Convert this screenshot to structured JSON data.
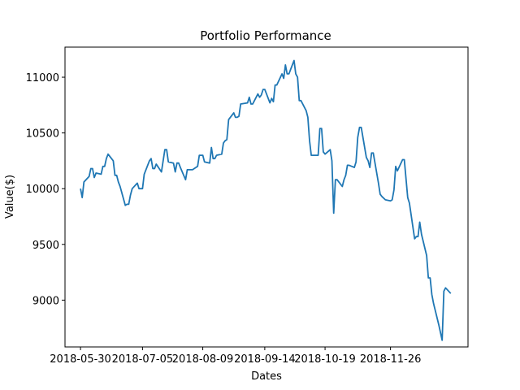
{
  "chart_data": {
    "type": "line",
    "title": "Portfolio Performance",
    "xlabel": "Dates",
    "ylabel": "Value($)",
    "x_ticks": [
      "2018-05-30",
      "2018-07-05",
      "2018-08-09",
      "2018-09-14",
      "2018-10-19",
      "2018-11-26"
    ],
    "y_ticks": [
      9000,
      9500,
      10000,
      10500,
      11000
    ],
    "ylim": [
      8580,
      11270
    ],
    "xlim": [
      "2018-05-21",
      "2019-01-10"
    ],
    "grid": false,
    "colors": {
      "line": "#1f77b4"
    },
    "series": [
      {
        "x": [
          "2018-05-30",
          "2018-05-31",
          "2018-06-01",
          "2018-06-04",
          "2018-06-05",
          "2018-06-06",
          "2018-06-07",
          "2018-06-08",
          "2018-06-11",
          "2018-06-12",
          "2018-06-13",
          "2018-06-14",
          "2018-06-15",
          "2018-06-18",
          "2018-06-19",
          "2018-06-20",
          "2018-06-21",
          "2018-06-22",
          "2018-06-25",
          "2018-06-26",
          "2018-06-27",
          "2018-06-28",
          "2018-06-29",
          "2018-07-02",
          "2018-07-03",
          "2018-07-05",
          "2018-07-06",
          "2018-07-09",
          "2018-07-10",
          "2018-07-11",
          "2018-07-12",
          "2018-07-13",
          "2018-07-16",
          "2018-07-17",
          "2018-07-18",
          "2018-07-19",
          "2018-07-20",
          "2018-07-23",
          "2018-07-24",
          "2018-07-25",
          "2018-07-26",
          "2018-07-27",
          "2018-07-30",
          "2018-07-31",
          "2018-08-01",
          "2018-08-02",
          "2018-08-03",
          "2018-08-06",
          "2018-08-07",
          "2018-08-08",
          "2018-08-09",
          "2018-08-10",
          "2018-08-13",
          "2018-08-14",
          "2018-08-15",
          "2018-08-16",
          "2018-08-17",
          "2018-08-20",
          "2018-08-21",
          "2018-08-22",
          "2018-08-23",
          "2018-08-24",
          "2018-08-27",
          "2018-08-28",
          "2018-08-29",
          "2018-08-30",
          "2018-08-31",
          "2018-09-04",
          "2018-09-05",
          "2018-09-06",
          "2018-09-07",
          "2018-09-10",
          "2018-09-11",
          "2018-09-12",
          "2018-09-13",
          "2018-09-14",
          "2018-09-17",
          "2018-09-18",
          "2018-09-19",
          "2018-09-20",
          "2018-09-21",
          "2018-09-24",
          "2018-09-25",
          "2018-09-26",
          "2018-09-27",
          "2018-09-28",
          "2018-10-01",
          "2018-10-02",
          "2018-10-03",
          "2018-10-04",
          "2018-10-05",
          "2018-10-08",
          "2018-10-09",
          "2018-10-10",
          "2018-10-11",
          "2018-10-12",
          "2018-10-15",
          "2018-10-16",
          "2018-10-17",
          "2018-10-18",
          "2018-10-19",
          "2018-10-22",
          "2018-10-23",
          "2018-10-24",
          "2018-10-25",
          "2018-10-26",
          "2018-10-29",
          "2018-10-30",
          "2018-10-31",
          "2018-11-01",
          "2018-11-02",
          "2018-11-05",
          "2018-11-06",
          "2018-11-07",
          "2018-11-08",
          "2018-11-09",
          "2018-11-12",
          "2018-11-13",
          "2018-11-14",
          "2018-11-15",
          "2018-11-16",
          "2018-11-19",
          "2018-11-20",
          "2018-11-21",
          "2018-11-23",
          "2018-11-26",
          "2018-11-27",
          "2018-11-28",
          "2018-11-29",
          "2018-11-30",
          "2018-12-03",
          "2018-12-04",
          "2018-12-06",
          "2018-12-07",
          "2018-12-10",
          "2018-12-11",
          "2018-12-12",
          "2018-12-13",
          "2018-12-14",
          "2018-12-17",
          "2018-12-18",
          "2018-12-19",
          "2018-12-20",
          "2018-12-21",
          "2018-12-24",
          "2018-12-26",
          "2018-12-27",
          "2018-12-28",
          "2018-12-31"
        ],
        "y": [
          10000,
          9920,
          10060,
          10110,
          10180,
          10180,
          10100,
          10140,
          10130,
          10200,
          10200,
          10270,
          10310,
          10250,
          10120,
          10120,
          10060,
          10020,
          9850,
          9860,
          9860,
          9940,
          10000,
          10050,
          10000,
          10000,
          10130,
          10250,
          10270,
          10180,
          10180,
          10220,
          10150,
          10250,
          10350,
          10350,
          10240,
          10230,
          10150,
          10230,
          10230,
          10190,
          10080,
          10170,
          10170,
          10170,
          10170,
          10200,
          10300,
          10300,
          10300,
          10240,
          10230,
          10370,
          10270,
          10270,
          10300,
          10310,
          10410,
          10430,
          10440,
          10620,
          10680,
          10640,
          10640,
          10650,
          10760,
          10770,
          10820,
          10760,
          10760,
          10850,
          10820,
          10840,
          10890,
          10890,
          10770,
          10810,
          10780,
          10930,
          10930,
          11030,
          10990,
          11110,
          11030,
          11030,
          11150,
          11030,
          11000,
          10790,
          10790,
          10700,
          10640,
          10430,
          10300,
          10300,
          10300,
          10540,
          10540,
          10330,
          10310,
          10350,
          10250,
          9780,
          10080,
          10080,
          10020,
          10080,
          10120,
          10210,
          10210,
          10190,
          10240,
          10460,
          10550,
          10550,
          10280,
          10250,
          10190,
          10320,
          10320,
          10050,
          9950,
          9930,
          9900,
          9890,
          9900,
          9990,
          10200,
          10160,
          10260,
          10260,
          9920,
          9870,
          9550,
          9570,
          9570,
          9700,
          9590,
          9400,
          9200,
          9200,
          9050,
          8970,
          8780,
          8640,
          9080,
          9110,
          9060
        ]
      }
    ]
  }
}
